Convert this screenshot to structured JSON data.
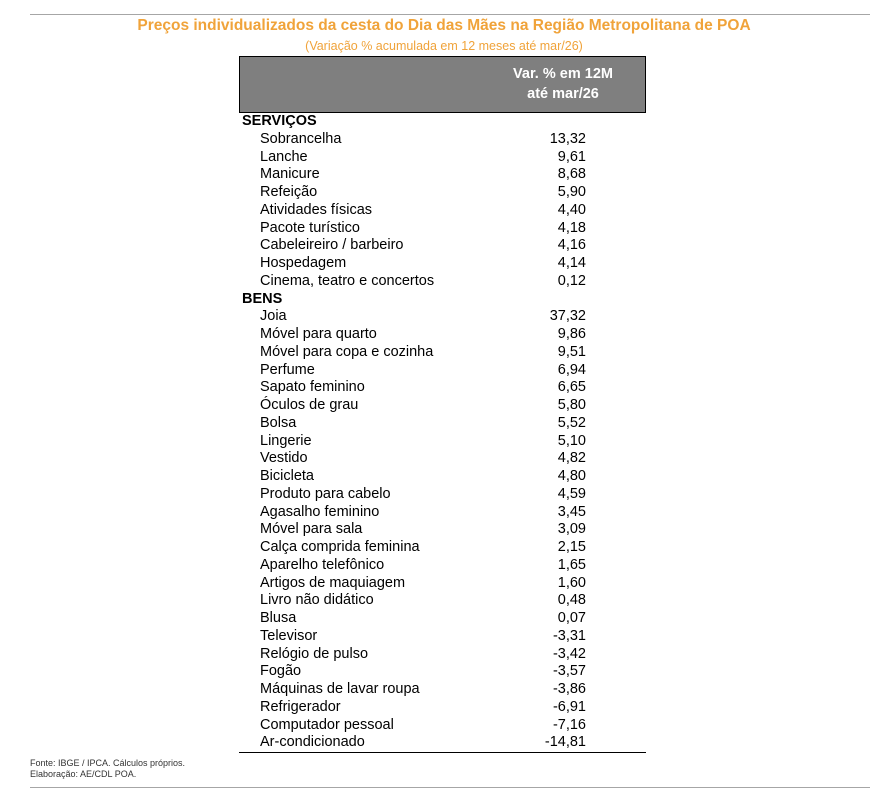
{
  "header": {
    "title": "Preços individualizados da cesta do Dia das Mães na Região Metropolitana de POA",
    "subtitle": "(Variação % acumulada em 12 meses até mar/26)"
  },
  "chart_data": {
    "type": "table",
    "title": "Preços individualizados da cesta do Dia das Mães na Região Metropolitana de POA",
    "subtitle": "(Variação % acumulada em 12 meses até mar/26)",
    "column_header": [
      "Var. % em 12M",
      "até mar/26"
    ],
    "sections": [
      {
        "name": "SERVIÇOS",
        "rows": [
          {
            "item": "Sobrancelha",
            "value": "13,32"
          },
          {
            "item": "Lanche",
            "value": "9,61"
          },
          {
            "item": "Manicure",
            "value": "8,68"
          },
          {
            "item": "Refeição",
            "value": "5,90"
          },
          {
            "item": "Atividades físicas",
            "value": "4,40"
          },
          {
            "item": "Pacote turístico",
            "value": "4,18"
          },
          {
            "item": "Cabeleireiro / barbeiro",
            "value": "4,16"
          },
          {
            "item": "Hospedagem",
            "value": "4,14"
          },
          {
            "item": "Cinema, teatro e concertos",
            "value": "0,12"
          }
        ]
      },
      {
        "name": "BENS",
        "rows": [
          {
            "item": "Joia",
            "value": "37,32"
          },
          {
            "item": "Móvel para quarto",
            "value": "9,86"
          },
          {
            "item": "Móvel para copa e cozinha",
            "value": "9,51"
          },
          {
            "item": "Perfume",
            "value": "6,94"
          },
          {
            "item": "Sapato feminino",
            "value": "6,65"
          },
          {
            "item": "Óculos de grau",
            "value": "5,80"
          },
          {
            "item": "Bolsa",
            "value": "5,52"
          },
          {
            "item": "Lingerie",
            "value": "5,10"
          },
          {
            "item": "Vestido",
            "value": "4,82"
          },
          {
            "item": "Bicicleta",
            "value": "4,80"
          },
          {
            "item": "Produto para cabelo",
            "value": "4,59"
          },
          {
            "item": "Agasalho feminino",
            "value": "3,45"
          },
          {
            "item": "Móvel para sala",
            "value": "3,09"
          },
          {
            "item": "Calça comprida feminina",
            "value": "2,15"
          },
          {
            "item": "Aparelho telefônico",
            "value": "1,65"
          },
          {
            "item": "Artigos de maquiagem",
            "value": "1,60"
          },
          {
            "item": "Livro não didático",
            "value": "0,48"
          },
          {
            "item": "Blusa",
            "value": "0,07"
          },
          {
            "item": "Televisor",
            "value": "-3,31"
          },
          {
            "item": "Relógio de pulso",
            "value": "-3,42"
          },
          {
            "item": "Fogão",
            "value": "-3,57"
          },
          {
            "item": "Máquinas de lavar roupa",
            "value": "-3,86"
          },
          {
            "item": "Refrigerador",
            "value": "-6,91"
          },
          {
            "item": "Computador pessoal",
            "value": "-7,16"
          },
          {
            "item": "Ar-condicionado",
            "value": "-14,81"
          }
        ]
      }
    ]
  },
  "footer": {
    "source": "Fonte: IBGE / IPCA. Cálculos próprios.",
    "credit": "Elaboração: AE/CDL POA."
  },
  "colors": {
    "title": "#f0a33a",
    "header_fill": "#7f7f7f",
    "header_text": "#ffffff"
  }
}
